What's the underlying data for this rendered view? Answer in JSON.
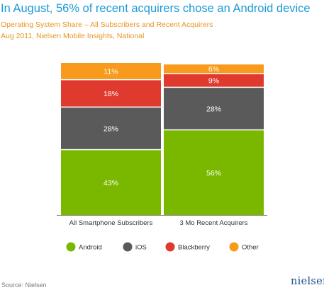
{
  "title": "In August, 56% of recent acquirers chose an Android device",
  "subtitle_1": "Operating System Share – All Subscribers and Recent Acquirers",
  "subtitle_2": "Aug 2011, Nielsen Mobile Insights, National",
  "source": "Source: Nielsen",
  "logo_text": "nielsen",
  "colors": {
    "Android": "#7ab800",
    "iOS": "#5a5a5a",
    "Blackberry": "#e03a2f",
    "Other": "#f89b1c",
    "title": "#1a9bd7",
    "subtitle": "#e8951f"
  },
  "chart_data": {
    "type": "bar",
    "stacked": true,
    "percent_stacked": true,
    "categories": [
      "All Smartphone Subscribers",
      "3 Mo Recent Acquirers"
    ],
    "series": [
      {
        "name": "Android",
        "values": [
          43,
          56
        ],
        "labels": [
          "43%",
          "56%"
        ]
      },
      {
        "name": "iOS",
        "values": [
          28,
          28
        ],
        "labels": [
          "28%",
          "28%"
        ]
      },
      {
        "name": "Blackberry",
        "values": [
          18,
          9
        ],
        "labels": [
          "18%",
          "9%"
        ]
      },
      {
        "name": "Other",
        "values": [
          11,
          6
        ],
        "labels": [
          "11%",
          "6%"
        ]
      }
    ],
    "ylim": [
      0,
      100
    ],
    "grid": false,
    "legend_position": "bottom"
  }
}
